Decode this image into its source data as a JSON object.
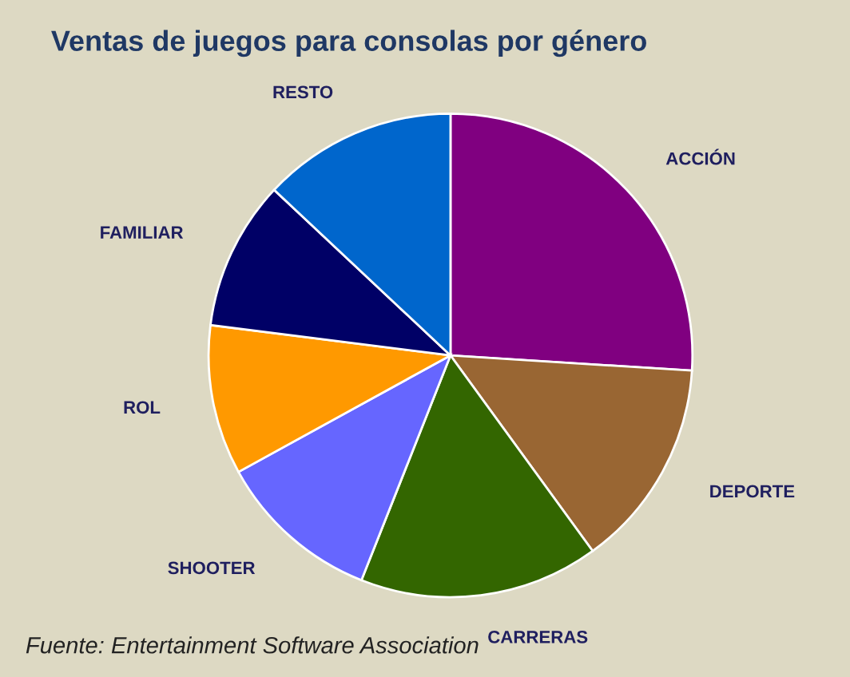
{
  "chart_data": {
    "type": "pie",
    "title": "Ventas de juegos para consolas por género",
    "categories": [
      "ACCIÓN",
      "DEPORTE",
      "CARRERAS",
      "SHOOTER",
      "ROL",
      "FAMILIAR",
      "RESTO"
    ],
    "values": [
      26,
      14,
      16,
      11,
      10,
      10,
      13
    ],
    "colors": [
      "#800080",
      "#996633",
      "#336600",
      "#6666ff",
      "#ff9900",
      "#000066",
      "#0066cc"
    ],
    "legend": false,
    "annotations": [
      "Fuente: Entertainment Software Association"
    ]
  }
}
